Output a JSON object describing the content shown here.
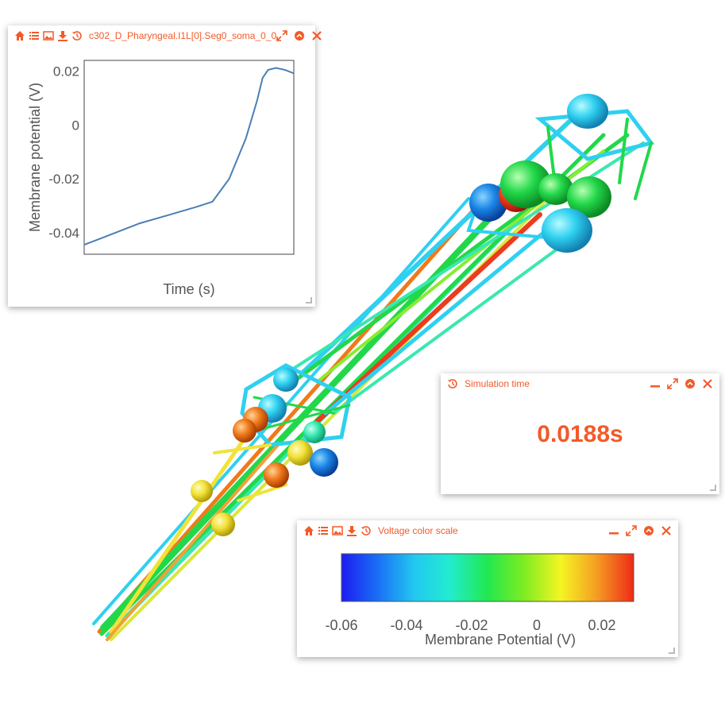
{
  "plot_widget": {
    "title": "c302_D_Pharyngeal.I1L[0].Seg0_soma_0_0",
    "ylabel": "Membrane potential (V)",
    "xlabel": "Time (s)",
    "yticks": [
      "0.02",
      "0",
      "-0.02",
      "-0.04"
    ]
  },
  "sim_widget": {
    "title": "Simulation time",
    "value": "0.0188s"
  },
  "scale_widget": {
    "title": "Voltage color scale",
    "ticks": [
      "-0.06",
      "-0.04",
      "-0.02",
      "0",
      "0.02"
    ],
    "xlabel": "Membrane Potential (V)"
  },
  "chart_data": {
    "type": "line",
    "xlabel": "Time (s)",
    "ylabel": "Membrane potential (V)",
    "ylim": [
      -0.048,
      0.024
    ],
    "xlim": [
      0,
      0.0188
    ],
    "series": [
      {
        "color": "#4a7fb5",
        "x": [
          0,
          0.0025,
          0.005,
          0.0075,
          0.01,
          0.0115,
          0.013,
          0.0145,
          0.0155,
          0.016,
          0.0165,
          0.0172,
          0.018,
          0.0188
        ],
        "y": [
          -0.0445,
          -0.0405,
          -0.0365,
          -0.0335,
          -0.0305,
          -0.0285,
          -0.02,
          -0.005,
          0.009,
          0.0175,
          0.0205,
          0.0212,
          0.0205,
          0.0192
        ]
      }
    ]
  },
  "colors": {
    "accent": "#f25a29",
    "line": "#4a7fb5"
  }
}
